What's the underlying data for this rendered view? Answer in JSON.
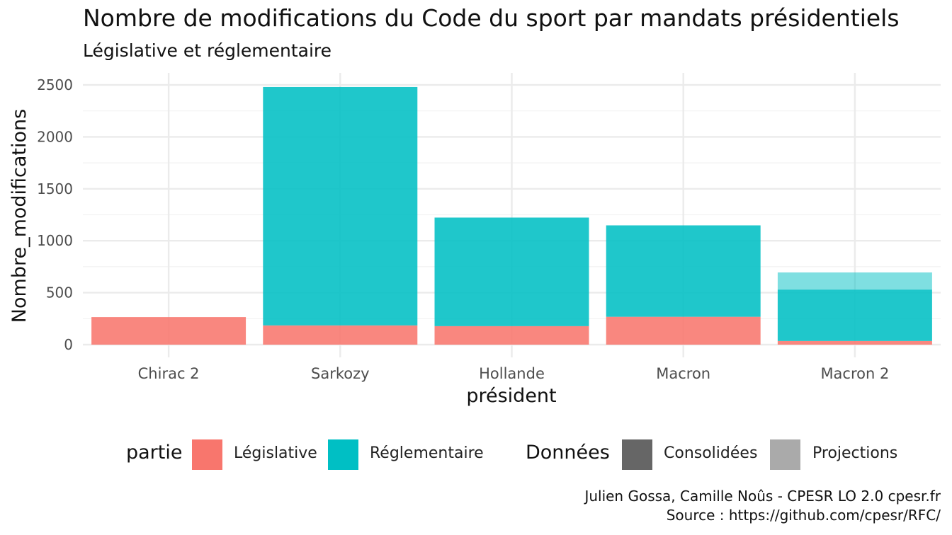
{
  "title": "Nombre de modifications du Code du sport par mandats présidentiels",
  "subtitle": "Législative et réglementaire",
  "caption": {
    "line1": "Julien Gossa, Camille Noûs - CPESR LO 2.0 cpesr.fr",
    "line2": "Source : https://github.com/cpesr/RFC/"
  },
  "legend": {
    "partie_title": "partie",
    "partie_items": [
      "Législative",
      "Réglementaire"
    ],
    "donnees_title": "Données",
    "donnees_items": [
      "Consolidées",
      "Projections"
    ]
  },
  "chart_data": {
    "type": "bar",
    "stacked": true,
    "title": "Nombre de modifications du Code du sport par mandats présidentiels",
    "subtitle": "Législative et réglementaire",
    "xlabel": "président",
    "ylabel": "Nombre_modifications",
    "categories": [
      "Chirac 2",
      "Sarkozy",
      "Hollande",
      "Macron",
      "Macron 2"
    ],
    "ylim": [
      0,
      2500
    ],
    "yticks": [
      0,
      500,
      1000,
      1500,
      2000,
      2500
    ],
    "grid": true,
    "legend_position": "bottom",
    "series": [
      {
        "name": "Législative",
        "data": "Consolidées",
        "color": "#F8766D",
        "values": [
          265,
          185,
          178,
          268,
          35
        ]
      },
      {
        "name": "Réglementaire",
        "data": "Consolidées",
        "color": "#00BFC4",
        "values": [
          0,
          2295,
          1045,
          880,
          495
        ]
      },
      {
        "name": "Réglementaire",
        "data": "Projections",
        "color": "#00BFC4",
        "values": [
          0,
          0,
          0,
          0,
          165
        ]
      }
    ],
    "colors": {
      "Législative": "#F8766D",
      "Réglementaire": "#00BFC4",
      "Consolidées": "#666666",
      "Projections": "#AAAAAA"
    }
  }
}
